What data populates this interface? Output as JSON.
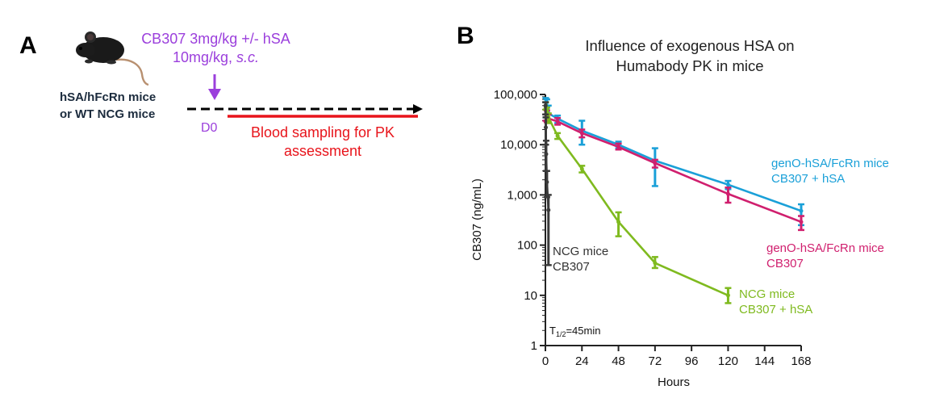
{
  "panel_a": {
    "label": "A",
    "dosing_line1": "CB307 3mg/kg +/- hSA",
    "dosing_line2_prefix": "10mg/kg, ",
    "dosing_line2_italic": "s.c.",
    "mouse_line1": "hSA/hFcRn mice",
    "mouse_line2": "or WT NCG mice",
    "day_label": "D0",
    "sampling_line1": "Blood sampling for PK",
    "sampling_line2": "assessment",
    "colors": {
      "dosing": "#9b3fdc",
      "sampling": "#e8141b",
      "mouse_text": "#1b2b3d"
    }
  },
  "panel_b": {
    "label": "B",
    "title_line1": "Influence of exogenous HSA on",
    "title_line2": "Humabody PK in mice",
    "annotation_half_life": "T",
    "annotation_half_life_sub": "1/2",
    "annotation_half_life_rest": "=45min"
  },
  "chart_data": {
    "type": "line",
    "title": "Influence of exogenous HSA on Humabody PK in mice",
    "xlabel": "Hours",
    "ylabel": "CB307 (ng/mL)",
    "xlim": [
      0,
      168
    ],
    "ylim": [
      1,
      100000
    ],
    "yscale": "log",
    "xticks": [
      0,
      24,
      48,
      72,
      96,
      120,
      144,
      168
    ],
    "yticks": [
      1,
      10,
      100,
      1000,
      10000,
      100000
    ],
    "ytick_labels": [
      "1",
      "10",
      "100",
      "1,000",
      "10,000",
      "100,000"
    ],
    "series": [
      {
        "name": "genO-hSA/FcRn mice CB307 + hSA",
        "legend_line1": "genO-hSA/FcRn mice",
        "legend_line2": "CB307 + hSA",
        "color": "#1aa0d8",
        "x": [
          0.25,
          1,
          2,
          8,
          24,
          48,
          72,
          120,
          168
        ],
        "y": [
          58000,
          52000,
          42000,
          33000,
          19000,
          10000,
          4800,
          1600,
          480
        ],
        "err_low": [
          35000,
          30000,
          28000,
          27000,
          10000,
          8500,
          1500,
          1300,
          250
        ],
        "err_high": [
          85000,
          80000,
          60000,
          38000,
          30000,
          11500,
          8500,
          1900,
          650
        ]
      },
      {
        "name": "genO-hSA/FcRn mice CB307",
        "legend_line1": "genO-hSA/FcRn mice",
        "legend_line2": "CB307",
        "color": "#d01f6e",
        "x": [
          0.25,
          1,
          2,
          8,
          24,
          48,
          72,
          120,
          168
        ],
        "y": [
          40000,
          38000,
          33000,
          29000,
          17000,
          9000,
          4300,
          1050,
          290
        ],
        "err_low": [
          30000,
          28000,
          27000,
          25000,
          14000,
          8000,
          3500,
          700,
          200
        ],
        "err_high": [
          50000,
          48000,
          40000,
          34000,
          20000,
          10500,
          5000,
          1400,
          380
        ]
      },
      {
        "name": "NCG mice CB307 + hSA",
        "legend_line1": "NCG mice",
        "legend_line2": "CB307 + hSA",
        "color": "#7fba1f",
        "x": [
          0.25,
          1,
          2,
          8,
          24,
          48,
          72,
          120
        ],
        "y": [
          60000,
          45000,
          35000,
          15000,
          3300,
          290,
          44,
          10
        ],
        "err_low": [
          50000,
          35000,
          27000,
          13000,
          2800,
          150,
          35,
          7
        ],
        "err_high": [
          70000,
          55000,
          42000,
          17000,
          3800,
          450,
          58,
          14
        ]
      },
      {
        "name": "NCG mice CB307",
        "legend_line1": "NCG mice",
        "legend_line2": "CB307",
        "color": "#3a3a3a",
        "x": [
          0.08,
          0.25,
          0.5,
          1,
          2
        ],
        "y": [
          60000,
          22000,
          6500,
          1800,
          500
        ],
        "err_low": [
          40000,
          10000,
          3000,
          900,
          40
        ],
        "err_high": [
          70000,
          35000,
          12000,
          3000,
          1000
        ]
      }
    ]
  }
}
